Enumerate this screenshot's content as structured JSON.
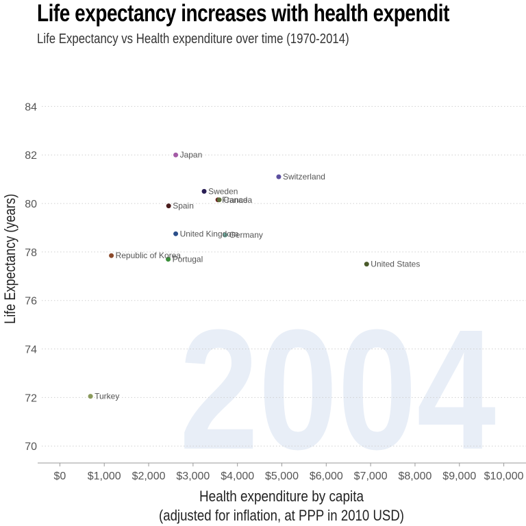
{
  "title": "Life expectancy increases with health expendit",
  "subtitle": "Life Expectancy vs Health expenditure over time (1970-2014)",
  "colors": {
    "background": "#ffffff",
    "year_watermark": "#e8eef7",
    "grid": "#cfcfcf"
  },
  "chart_data": {
    "type": "scatter",
    "year": "2004",
    "xlabel_line1": "Health expenditure by capita",
    "xlabel_line2": "(adjusted for inflation, at PPP in 2010 USD)",
    "ylabel": "Life Expectancy (years)",
    "xlim": [
      -500,
      10500
    ],
    "ylim": [
      69.3,
      85
    ],
    "grid": "horizontal dotted",
    "x_ticks": [
      {
        "value": 0,
        "label": "$0"
      },
      {
        "value": 1000,
        "label": "$1,000"
      },
      {
        "value": 2000,
        "label": "$2,000"
      },
      {
        "value": 3000,
        "label": "$3,000"
      },
      {
        "value": 4000,
        "label": "$4,000"
      },
      {
        "value": 5000,
        "label": "$5,000"
      },
      {
        "value": 6000,
        "label": "$6,000"
      },
      {
        "value": 7000,
        "label": "$7,000"
      },
      {
        "value": 8000,
        "label": "$8,000"
      },
      {
        "value": 9000,
        "label": "$9,000"
      },
      {
        "value": 10000,
        "label": "$10,000"
      }
    ],
    "y_ticks": [
      {
        "value": 70,
        "label": "70"
      },
      {
        "value": 72,
        "label": "72"
      },
      {
        "value": 74,
        "label": "74"
      },
      {
        "value": 76,
        "label": "76"
      },
      {
        "value": 78,
        "label": "78"
      },
      {
        "value": 80,
        "label": "80"
      },
      {
        "value": 82,
        "label": "82"
      },
      {
        "value": 84,
        "label": "84"
      }
    ],
    "points": [
      {
        "country": "Japan",
        "x": 2610,
        "y": 82.0,
        "color": "#a45ba6"
      },
      {
        "country": "Switzerland",
        "x": 4930,
        "y": 81.1,
        "color": "#5c4f9e"
      },
      {
        "country": "Sweden",
        "x": 3250,
        "y": 80.5,
        "color": "#2a1e55"
      },
      {
        "country": "France",
        "x": 3560,
        "y": 80.15,
        "color": "#6b1f1f"
      },
      {
        "country": "Canada",
        "x": 3590,
        "y": 80.15,
        "color": "#5b6d3a"
      },
      {
        "country": "Spain",
        "x": 2450,
        "y": 79.9,
        "color": "#4a1c1c"
      },
      {
        "country": "United Kingdom",
        "x": 2610,
        "y": 78.75,
        "color": "#2c4f8a"
      },
      {
        "country": "Germany",
        "x": 3720,
        "y": 78.7,
        "color": "#6aaa9c"
      },
      {
        "country": "Republic of Korea",
        "x": 1160,
        "y": 77.85,
        "color": "#8b4a2b"
      },
      {
        "country": "Portugal",
        "x": 2440,
        "y": 77.7,
        "color": "#3a8f3a"
      },
      {
        "country": "United States",
        "x": 6910,
        "y": 77.5,
        "color": "#4a5a2a"
      },
      {
        "country": "Turkey",
        "x": 690,
        "y": 72.05,
        "color": "#8a9a5c"
      }
    ]
  }
}
